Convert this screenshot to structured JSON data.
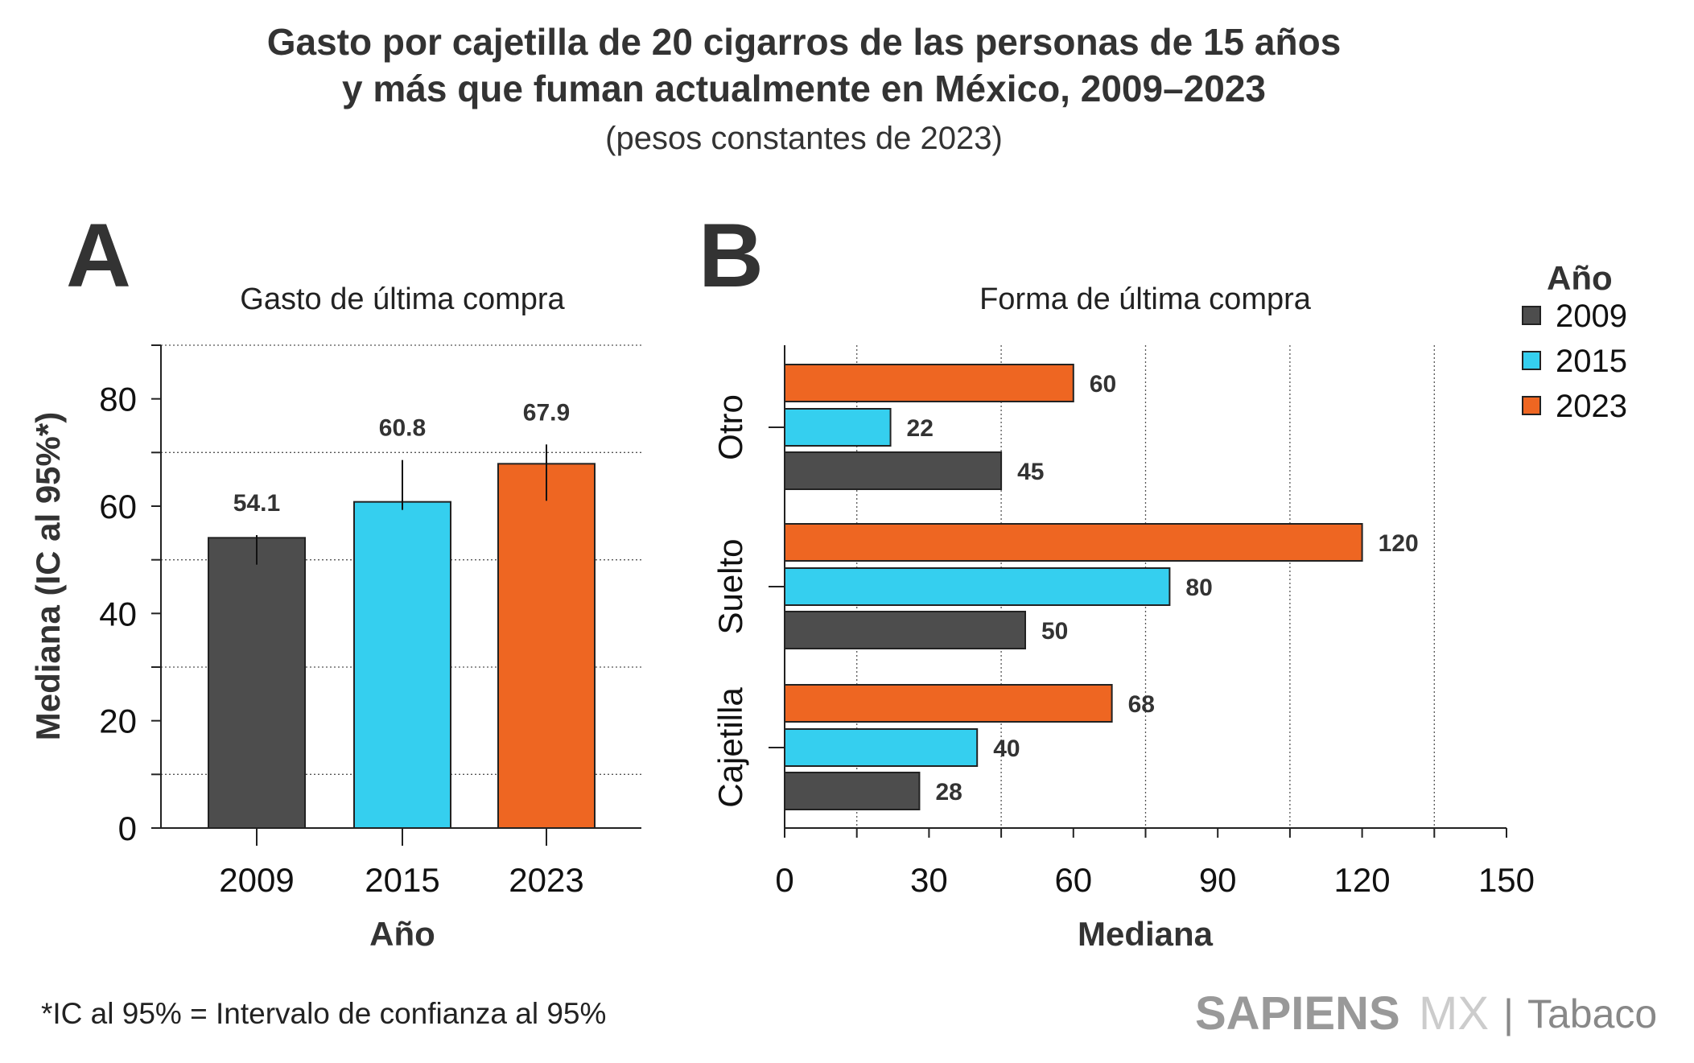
{
  "title": {
    "line1": "Gasto por cajetilla de 20 cigarros de las personas de 15 años",
    "line2": "y más que fuman actualmente en México, 2009–2023",
    "subtitle": "(pesos constantes de 2023)"
  },
  "colors": {
    "2009": "#4d4d4d",
    "2015": "#35cfef",
    "2023": "#ee6622"
  },
  "chart_data": [
    {
      "panel": "A",
      "type": "bar",
      "title": "Gasto de última compra",
      "xlabel": "Año",
      "ylabel": "Mediana (IC al 95%*)",
      "categories": [
        "2009",
        "2015",
        "2023"
      ],
      "values": [
        54.1,
        60.8,
        67.9
      ],
      "value_labels": [
        "54.1",
        "60.8",
        "67.9"
      ],
      "error_bars": [
        [
          49.1,
          54.6
        ],
        [
          59.3,
          68.6
        ],
        [
          61.0,
          71.5
        ]
      ],
      "ylim": [
        0,
        90
      ],
      "yticks": [
        0,
        20,
        40,
        60,
        80
      ],
      "ytick_labels": [
        "0",
        "20",
        "40",
        "60",
        "80"
      ],
      "grid": "horizontal dotted at 10, 30, 50, 70, 90"
    },
    {
      "panel": "B",
      "type": "bar",
      "orientation": "horizontal",
      "title": "Forma de última compra",
      "xlabel": "Mediana",
      "categories": [
        "Otro",
        "Suelto",
        "Cajetilla"
      ],
      "series": [
        {
          "name": "2023",
          "values": [
            60,
            120,
            68
          ]
        },
        {
          "name": "2015",
          "values": [
            22,
            80,
            40
          ]
        },
        {
          "name": "2009",
          "values": [
            45,
            50,
            28
          ]
        }
      ],
      "xlim": [
        0,
        150
      ],
      "xticks": [
        0,
        30,
        60,
        90,
        120,
        150
      ],
      "xtick_labels": [
        "0",
        "30",
        "60",
        "90",
        "120",
        "150"
      ],
      "grid": "vertical dotted at 15, 45, 75, 105, 135",
      "legend": {
        "title": "Año",
        "items": [
          "2009",
          "2015",
          "2023"
        ],
        "position": "top-right"
      }
    }
  ],
  "footnote": "*IC al 95% = Intervalo de confianza al 95%",
  "logo": {
    "bold": "SAPIENS",
    "light": "MX",
    "sep": "|",
    "section": "Tabaco"
  }
}
